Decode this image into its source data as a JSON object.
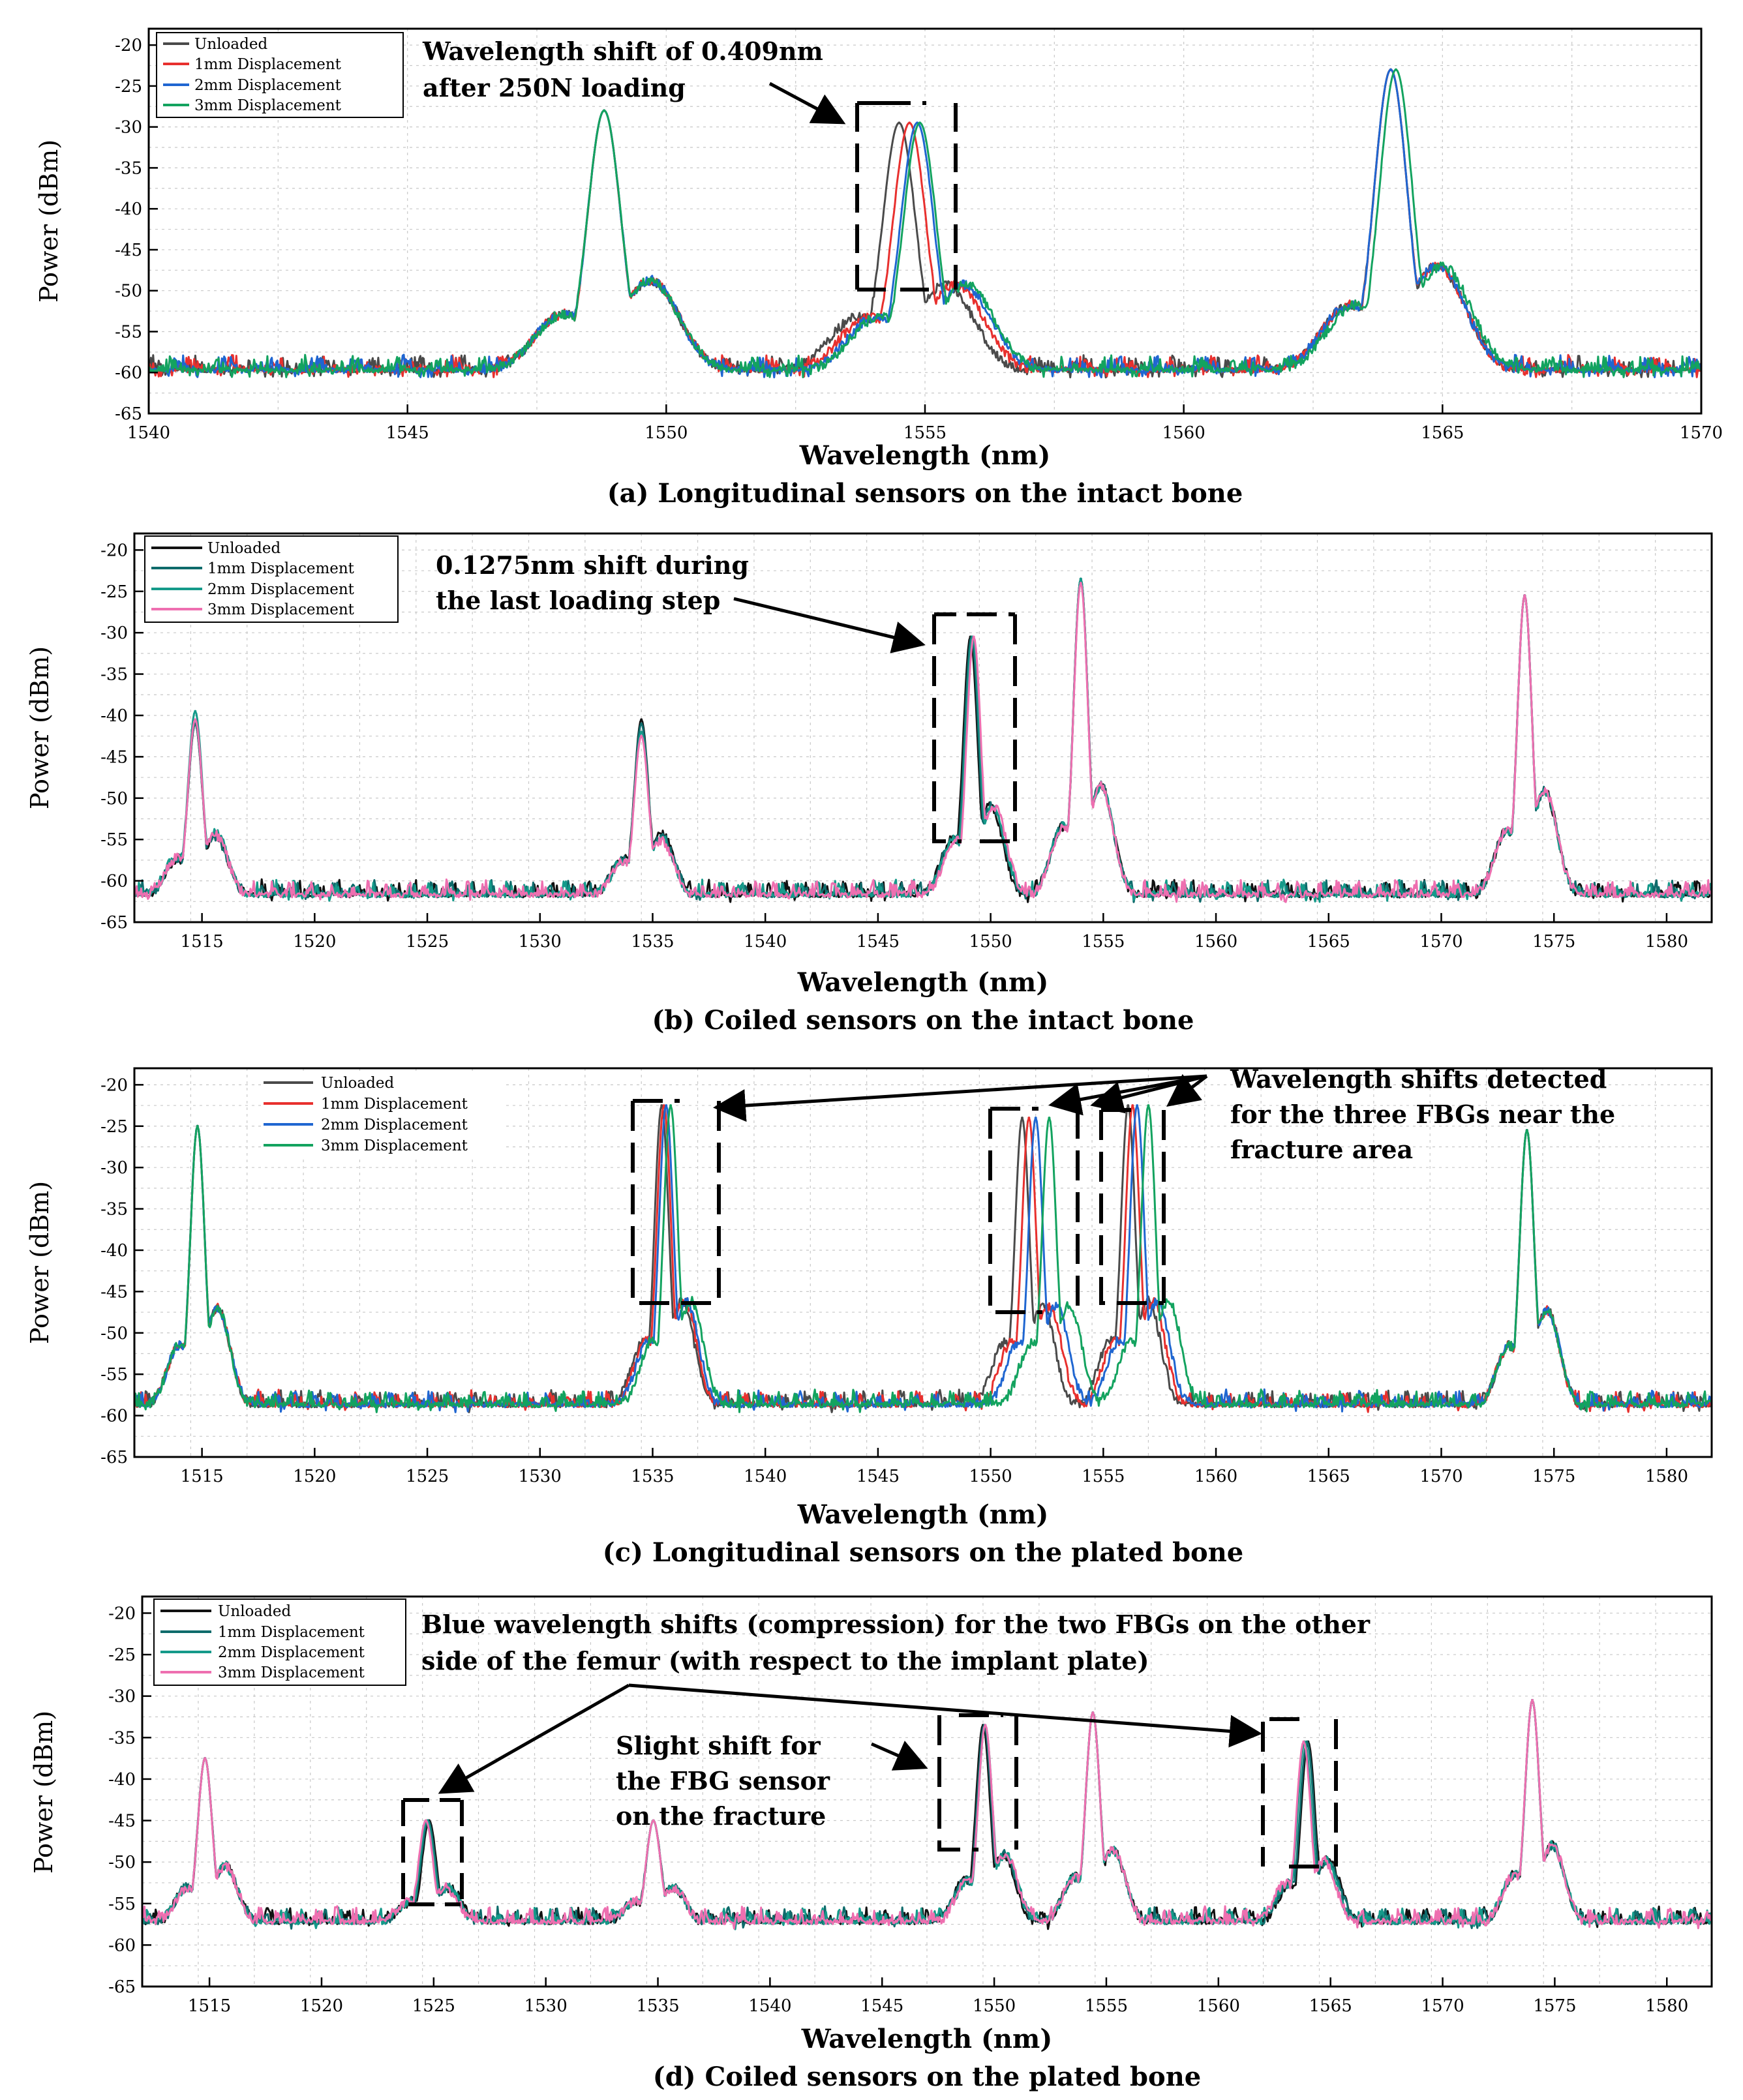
{
  "colors": {
    "unloaded_a": "#4a4a4a",
    "mm1_a": "#e8302e",
    "mm2_a": "#1f66d1",
    "mm3_a": "#13a35f",
    "unloaded_b": "#111111",
    "mm1_b": "#0e6b6b",
    "mm2_b": "#159a8a",
    "mm3_b": "#ee6fb0",
    "grid": "#c8c8c8",
    "frame": "#000000"
  },
  "chart_data": [
    {
      "id": "a",
      "type": "line",
      "caption": "(a) Longitudinal sensors on the intact bone",
      "xlabel": "Wavelength (nm)",
      "ylabel": "Power (dBm)",
      "xlim": [
        1540,
        1570
      ],
      "ylim": [
        -65,
        -18
      ],
      "xticks": [
        1540,
        1545,
        1550,
        1555,
        1560,
        1565,
        1570
      ],
      "yticks": [
        -20,
        -25,
        -30,
        -35,
        -40,
        -45,
        -50,
        -55,
        -60,
        -65
      ],
      "grid": true,
      "legend_position": "top-left",
      "baseline_dbm": -60,
      "series": [
        {
          "name": "Unloaded",
          "color_key": "unloaded_a",
          "peaks": [
            [
              1548.8,
              -28
            ],
            [
              1554.5,
              -29.5
            ],
            [
              1564.0,
              -23
            ]
          ]
        },
        {
          "name": "1mm Displacement",
          "color_key": "mm1_a",
          "peaks": [
            [
              1548.8,
              -28
            ],
            [
              1554.7,
              -29.5
            ],
            [
              1564.0,
              -23
            ]
          ]
        },
        {
          "name": "2mm Displacement",
          "color_key": "mm2_a",
          "peaks": [
            [
              1548.8,
              -28
            ],
            [
              1554.85,
              -29.5
            ],
            [
              1564.0,
              -23
            ]
          ]
        },
        {
          "name": "3mm Displacement",
          "color_key": "mm3_a",
          "peaks": [
            [
              1548.8,
              -28
            ],
            [
              1554.9,
              -29.5
            ],
            [
              1564.1,
              -23
            ]
          ]
        }
      ],
      "annotations": [
        {
          "lines": [
            "Wavelength shift of 0.409nm",
            "after 250N loading"
          ]
        }
      ]
    },
    {
      "id": "b",
      "type": "line",
      "caption": "(b)  Coiled sensors on the intact bone",
      "xlabel": "Wavelength (nm)",
      "ylabel": "Power (dBm)",
      "xlim": [
        1512,
        1582
      ],
      "ylim": [
        -65,
        -18
      ],
      "xticks": [
        1515,
        1520,
        1525,
        1530,
        1535,
        1540,
        1545,
        1550,
        1555,
        1560,
        1565,
        1570,
        1575,
        1580
      ],
      "yticks": [
        -20,
        -25,
        -30,
        -35,
        -40,
        -45,
        -50,
        -55,
        -60,
        -65
      ],
      "grid": true,
      "legend_position": "top-left",
      "baseline_dbm": -62,
      "series": [
        {
          "name": "Unloaded",
          "color_key": "unloaded_b",
          "peaks": [
            [
              1514.7,
              -41
            ],
            [
              1534.5,
              -40.5
            ],
            [
              1549.1,
              -30.5
            ],
            [
              1554.0,
              -23.5
            ],
            [
              1573.7,
              -25.5
            ]
          ]
        },
        {
          "name": "1mm Displacement",
          "color_key": "mm1_b",
          "peaks": [
            [
              1514.7,
              -41
            ],
            [
              1534.5,
              -41
            ],
            [
              1549.15,
              -30.5
            ],
            [
              1554.0,
              -23.5
            ],
            [
              1573.7,
              -25.5
            ]
          ]
        },
        {
          "name": "2mm Displacement",
          "color_key": "mm2_b",
          "peaks": [
            [
              1514.7,
              -39.5
            ],
            [
              1534.5,
              -42
            ],
            [
              1549.2,
              -30.5
            ],
            [
              1554.0,
              -23.5
            ],
            [
              1573.7,
              -25.5
            ]
          ]
        },
        {
          "name": "3mm Displacement",
          "color_key": "mm3_b",
          "peaks": [
            [
              1514.7,
              -40.5
            ],
            [
              1534.5,
              -42.5
            ],
            [
              1549.25,
              -30.5
            ],
            [
              1554.0,
              -24
            ],
            [
              1573.7,
              -25.5
            ]
          ]
        }
      ],
      "annotations": [
        {
          "lines": [
            "0.1275nm  shift  during",
            "the last loading step"
          ]
        }
      ]
    },
    {
      "id": "c",
      "type": "line",
      "caption": "(c) Longitudinal sensors on the plated bone",
      "xlabel": "Wavelength (nm)",
      "ylabel": "Power (dBm)",
      "xlim": [
        1512,
        1582
      ],
      "ylim": [
        -65,
        -18
      ],
      "xticks": [
        1515,
        1520,
        1525,
        1530,
        1535,
        1540,
        1545,
        1550,
        1555,
        1560,
        1565,
        1570,
        1575,
        1580
      ],
      "yticks": [
        -20,
        -25,
        -30,
        -35,
        -40,
        -45,
        -50,
        -55,
        -60,
        -65
      ],
      "grid": true,
      "legend_position": "top-left",
      "baseline_dbm": -59,
      "series": [
        {
          "name": "Unloaded",
          "color_key": "unloaded_a",
          "peaks": [
            [
              1514.8,
              -25
            ],
            [
              1535.4,
              -22.5
            ],
            [
              1551.4,
              -24
            ],
            [
              1556.1,
              -22.5
            ],
            [
              1573.8,
              -25.5
            ]
          ]
        },
        {
          "name": "1mm Displacement",
          "color_key": "mm1_a",
          "peaks": [
            [
              1514.8,
              -25
            ],
            [
              1535.5,
              -22.5
            ],
            [
              1551.7,
              -24
            ],
            [
              1556.3,
              -22.5
            ],
            [
              1573.8,
              -25.5
            ]
          ]
        },
        {
          "name": "2mm Displacement",
          "color_key": "mm2_a",
          "peaks": [
            [
              1514.8,
              -25
            ],
            [
              1535.6,
              -22.5
            ],
            [
              1552.0,
              -24
            ],
            [
              1556.5,
              -22.5
            ],
            [
              1573.8,
              -25.5
            ]
          ]
        },
        {
          "name": "3mm Displacement",
          "color_key": "mm3_a",
          "peaks": [
            [
              1514.8,
              -25
            ],
            [
              1535.8,
              -22.5
            ],
            [
              1552.6,
              -24
            ],
            [
              1557.0,
              -22.5
            ],
            [
              1573.8,
              -25.5
            ]
          ]
        }
      ],
      "annotations": [
        {
          "lines": [
            "Wavelength shifts detected",
            "for the three FBGs near the",
            "fracture area"
          ]
        }
      ]
    },
    {
      "id": "d",
      "type": "line",
      "caption": "(d) Coiled sensors on the plated bone",
      "xlabel": "Wavelength (nm)",
      "ylabel": "Power (dBm)",
      "xlim": [
        1512,
        1582
      ],
      "ylim": [
        -65,
        -18
      ],
      "xticks": [
        1515,
        1520,
        1525,
        1530,
        1535,
        1540,
        1545,
        1550,
        1555,
        1560,
        1565,
        1570,
        1575,
        1580
      ],
      "yticks": [
        -20,
        -25,
        -30,
        -35,
        -40,
        -45,
        -50,
        -55,
        -60,
        -65
      ],
      "grid": true,
      "legend_position": "top-left",
      "baseline_dbm": -57.5,
      "series": [
        {
          "name": "Unloaded",
          "color_key": "unloaded_b",
          "peaks": [
            [
              1514.8,
              -37.5
            ],
            [
              1524.8,
              -45
            ],
            [
              1534.8,
              -45
            ],
            [
              1549.5,
              -33.5
            ],
            [
              1554.4,
              -32
            ],
            [
              1564.0,
              -35.5
            ],
            [
              1574.0,
              -30.5
            ]
          ]
        },
        {
          "name": "1mm Displacement",
          "color_key": "mm1_b",
          "peaks": [
            [
              1514.8,
              -37.5
            ],
            [
              1524.75,
              -45
            ],
            [
              1534.8,
              -45
            ],
            [
              1549.55,
              -33.5
            ],
            [
              1554.4,
              -32
            ],
            [
              1563.95,
              -35.5
            ],
            [
              1574.0,
              -30.5
            ]
          ]
        },
        {
          "name": "2mm Displacement",
          "color_key": "mm2_b",
          "peaks": [
            [
              1514.8,
              -37.5
            ],
            [
              1524.7,
              -45
            ],
            [
              1534.8,
              -45
            ],
            [
              1549.6,
              -33.5
            ],
            [
              1554.4,
              -32
            ],
            [
              1563.85,
              -35.5
            ],
            [
              1574.0,
              -30.5
            ]
          ]
        },
        {
          "name": "3mm Displacement",
          "color_key": "mm3_b",
          "peaks": [
            [
              1514.8,
              -37.5
            ],
            [
              1524.65,
              -45
            ],
            [
              1534.8,
              -45
            ],
            [
              1549.6,
              -33.5
            ],
            [
              1554.4,
              -32
            ],
            [
              1563.8,
              -35.5
            ],
            [
              1574.0,
              -30.5
            ]
          ]
        }
      ],
      "annotations": [
        {
          "lines": [
            "Blue wavelength shifts (compression) for the two FBGs on the other",
            "side of the femur (with respect to the implant plate)"
          ]
        },
        {
          "lines": [
            "Slight shift for",
            "the FBG sensor",
            "on the fracture"
          ]
        }
      ]
    }
  ]
}
